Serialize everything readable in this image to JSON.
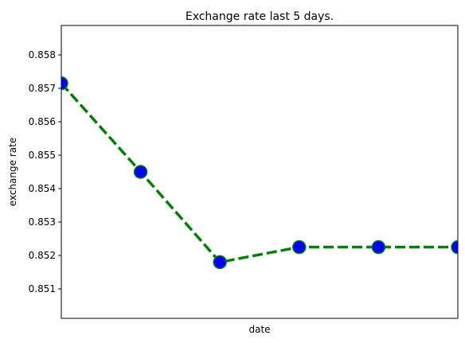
{
  "chart_data": {
    "type": "line",
    "title": "Exchange rate last 5 days.",
    "xlabel": "date",
    "ylabel": "exchange rate",
    "x": [
      0,
      1,
      2,
      3,
      4,
      5
    ],
    "xlim": [
      0,
      5
    ],
    "xticks_visible": false,
    "ylim": [
      0.85012,
      0.85888
    ],
    "yticks": [
      0.851,
      0.852,
      0.853,
      0.854,
      0.855,
      0.856,
      0.857,
      0.858
    ],
    "ytick_labels": [
      "0.851",
      "0.852",
      "0.853",
      "0.854",
      "0.855",
      "0.856",
      "0.857",
      "0.858"
    ],
    "grid": false,
    "series": [
      {
        "name": "exchange rate",
        "values": [
          0.85715,
          0.8545,
          0.8518,
          0.85225,
          0.85225,
          0.85225
        ],
        "line_color": "#008000",
        "line_style": "dashed",
        "marker": "circle",
        "marker_face_color": "#0000ff",
        "marker_edge_color": "#008000"
      }
    ]
  }
}
